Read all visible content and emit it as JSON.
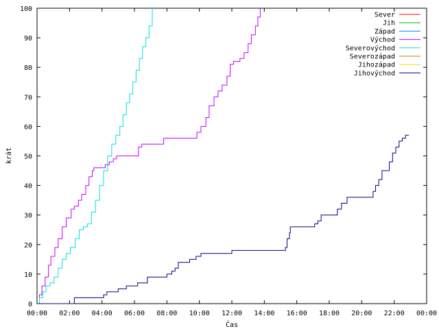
{
  "chart_data": {
    "type": "line",
    "title": "",
    "xlabel": "Čas",
    "ylabel": "krát",
    "xlim": [
      0,
      24
    ],
    "ylim": [
      0,
      100
    ],
    "x_ticks": [
      0,
      2,
      4,
      6,
      8,
      10,
      12,
      14,
      16,
      18,
      20,
      22,
      24
    ],
    "x_tick_labels": [
      "00:00",
      "02:00",
      "04:00",
      "06:00",
      "08:00",
      "10:00",
      "12:00",
      "14:00",
      "16:00",
      "18:00",
      "20:00",
      "22:00",
      "00:00"
    ],
    "y_ticks": [
      0,
      10,
      20,
      30,
      40,
      50,
      60,
      70,
      80,
      90,
      100
    ],
    "y_tick_labels": [
      "0",
      "10",
      "20",
      "30",
      "40",
      "50",
      "60",
      "70",
      "80",
      "90",
      "100"
    ],
    "legend_position": "top-right",
    "grid": false,
    "series": [
      {
        "name": "Sever",
        "color": "#ff0000",
        "x": [],
        "y": []
      },
      {
        "name": "Jih",
        "color": "#00c000",
        "x": [],
        "y": []
      },
      {
        "name": "Západ",
        "color": "#0080ff",
        "x": [],
        "y": []
      },
      {
        "name": "Východ",
        "color": "#c000ff",
        "step": true,
        "x": [
          0,
          0.15,
          0.3,
          0.5,
          0.7,
          0.85,
          1.1,
          1.3,
          1.55,
          1.8,
          2.1,
          2.3,
          2.55,
          2.75,
          3.0,
          3.2,
          3.4,
          3.5,
          4.2,
          4.45,
          4.7,
          4.9,
          6.25,
          6.45,
          7.8,
          9.85,
          10.1,
          10.4,
          10.6,
          10.9,
          11.15,
          11.4,
          11.7,
          11.9,
          12.1,
          12.5,
          12.75,
          13.0,
          13.2,
          13.45,
          13.6,
          13.75
        ],
        "y": [
          0,
          3,
          6,
          9,
          13,
          16,
          19,
          22,
          26,
          29,
          32,
          33,
          35,
          37,
          40,
          43,
          45,
          46,
          47,
          48,
          49,
          50,
          53,
          54,
          56,
          58,
          60,
          63,
          67,
          70,
          72,
          74,
          77,
          81,
          82,
          83,
          85,
          88,
          91,
          94,
          97,
          100
        ]
      },
      {
        "name": "Severovýchod",
        "color": "#00e0e0",
        "step": true,
        "x": [
          0,
          0.15,
          0.35,
          0.55,
          0.8,
          1.05,
          1.3,
          1.55,
          1.8,
          2.05,
          2.35,
          2.6,
          2.85,
          3.1,
          3.35,
          3.6,
          3.85,
          4.1,
          4.35,
          4.6,
          4.85,
          5.1,
          5.3,
          5.5,
          5.7,
          5.9,
          6.1,
          6.3,
          6.5,
          6.7,
          6.9,
          7.1
        ],
        "y": [
          0,
          2,
          4,
          6,
          7,
          9,
          12,
          15,
          17,
          19,
          22,
          25,
          26,
          27,
          31,
          35,
          40,
          45,
          50,
          54,
          57,
          60,
          64,
          68,
          71,
          75,
          79,
          83,
          87,
          90,
          94,
          100
        ]
      },
      {
        "name": "Severozápad",
        "color": "#c08000",
        "x": [],
        "y": []
      },
      {
        "name": "Jihozápad",
        "color": "#ffd700",
        "x": [],
        "y": []
      },
      {
        "name": "Jihovýchod",
        "color": "#000080",
        "step": true,
        "x": [
          0,
          2.3,
          4.1,
          4.3,
          5.0,
          5.5,
          6.2,
          6.8,
          8.0,
          8.3,
          8.5,
          8.7,
          9.4,
          9.8,
          10.1,
          12.0,
          15.3,
          15.4,
          15.55,
          15.6,
          17.1,
          17.3,
          17.5,
          18.5,
          18.75,
          19.1,
          20.7,
          20.85,
          21.05,
          21.25,
          21.7,
          21.9,
          22.1,
          22.3,
          22.5,
          22.7,
          22.9
        ],
        "y": [
          0,
          2,
          3,
          4,
          5,
          6,
          7,
          9,
          10,
          11,
          12,
          14,
          15,
          16,
          17,
          18,
          19,
          22,
          24,
          26,
          27,
          28,
          30,
          32,
          34,
          36,
          38,
          40,
          42,
          45,
          48,
          51,
          53,
          55,
          56,
          57,
          57
        ]
      }
    ]
  }
}
